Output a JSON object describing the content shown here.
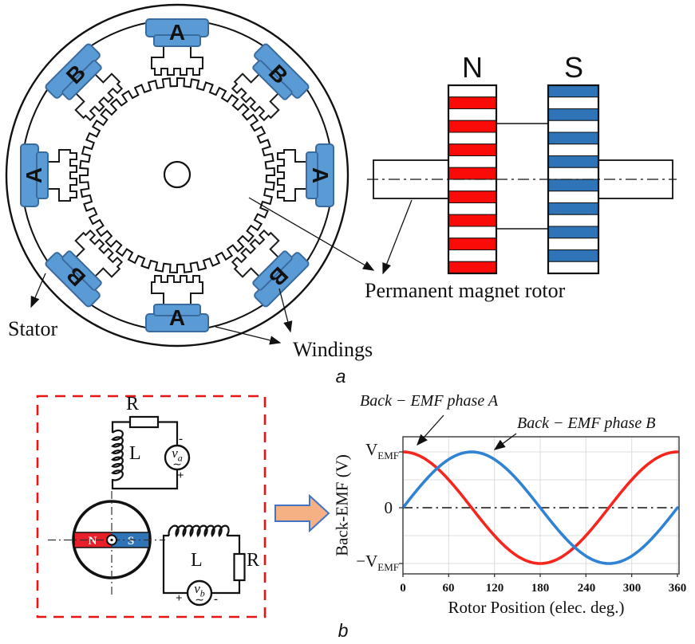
{
  "panels": {
    "a": "a",
    "b": "b"
  },
  "stator": {
    "pole_labels": [
      "A",
      "B",
      "A",
      "B",
      "A",
      "B",
      "A",
      "B"
    ],
    "stator_label": "Stator",
    "windings_label": "Windings"
  },
  "pm_rotor": {
    "north": "N",
    "south": "S",
    "caption": "Permanent magnet rotor",
    "north_color": "#fb0b07",
    "south_color": "#2e74b6",
    "stripes_per_stack": 16
  },
  "circuit": {
    "phase_a": {
      "resistor": "R",
      "inductor": "L",
      "v": "v",
      "v_sub": "a",
      "tilde": "∼",
      "minus": "-",
      "plus": "+"
    },
    "phase_b": {
      "resistor": "R",
      "inductor": "L",
      "v": "v",
      "v_sub": "b",
      "tilde": "∼",
      "minus": "-",
      "plus": "+"
    },
    "magnet": {
      "n": "N",
      "s": "S",
      "n_color": "#e8202a",
      "s_color": "#2e74b6"
    },
    "box_color": "#ee1111",
    "arrow_fill": "#f5b183",
    "arrow_stroke": "#4472c4"
  },
  "chart": {
    "annotation_a": "Back − EMF phase A",
    "annotation_b": "Back − EMF phase B",
    "ytick_top": {
      "main": "V",
      "sub": "EMF"
    },
    "ytick_zero": "0",
    "ytick_bottom": {
      "minus": "−",
      "main": "V",
      "sub": "EMF"
    },
    "ylabel": "Back-EMF (V)",
    "xlabel": "Rotor Position (elec. deg.)"
  },
  "chart_data": {
    "type": "line",
    "title": "",
    "xlabel": "Rotor Position (elec. deg.)",
    "ylabel": "Back-EMF (V)",
    "x_ticks": [
      0,
      60,
      120,
      180,
      240,
      300,
      360
    ],
    "y_tick_labels": [
      "VEMF",
      "0",
      "-VEMF"
    ],
    "xlim": [
      0,
      360
    ],
    "ylim_vemf_units": [
      -1.25,
      1.27
    ],
    "grid": true,
    "zero_line_style": "dash-dot",
    "x_deg": [
      0,
      30,
      60,
      90,
      120,
      150,
      180,
      210,
      240,
      270,
      300,
      330,
      360
    ],
    "series": [
      {
        "name": "Back − EMF phase A",
        "waveform": "cosine",
        "phase_deg": 90,
        "amplitude": "VEMF",
        "color": "#f5261e",
        "y_vemf_units": [
          1,
          0.87,
          0.5,
          0,
          -0.5,
          -0.87,
          -1,
          -0.87,
          -0.5,
          0,
          0.5,
          0.87,
          1
        ]
      },
      {
        "name": "Back − EMF phase B",
        "waveform": "sine",
        "phase_deg": 0,
        "amplitude": "VEMF",
        "color": "#2f82d4",
        "y_vemf_units": [
          0,
          0.5,
          0.87,
          1,
          0.87,
          0.5,
          0,
          -0.5,
          -0.87,
          -1,
          -0.87,
          -0.5,
          0
        ]
      }
    ]
  }
}
